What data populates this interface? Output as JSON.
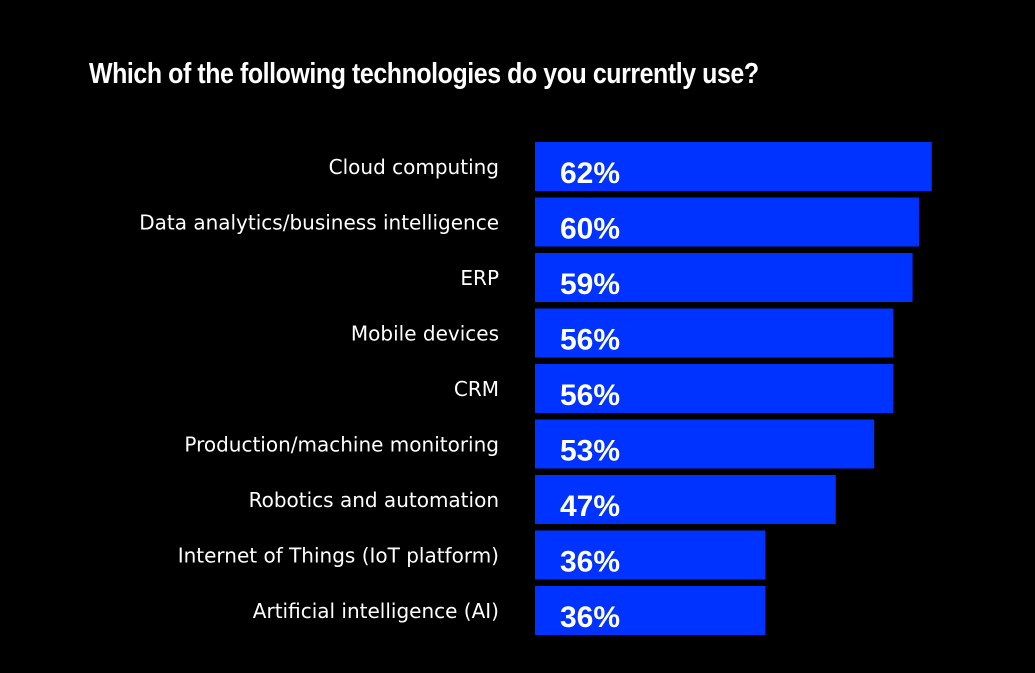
{
  "chart_data": {
    "type": "bar",
    "orientation": "horizontal",
    "title": "Which of the following technologies do you currently use?",
    "categories": [
      "Cloud computing",
      "Data analytics/business intelligence",
      "ERP",
      "Mobile devices",
      "CRM",
      "Production/machine monitoring",
      "Robotics and automation",
      "Internet of Things (IoT platform)",
      "Artificial intelligence (AI)"
    ],
    "values": [
      62,
      60,
      59,
      56,
      56,
      53,
      47,
      36,
      36
    ],
    "value_labels": [
      "62%",
      "60%",
      "59%",
      "56%",
      "56%",
      "53%",
      "47%",
      "36%",
      "36%"
    ],
    "unit": "%",
    "bar_color": "#0033ff",
    "background": "#000000",
    "grid": false,
    "legend": "none"
  }
}
